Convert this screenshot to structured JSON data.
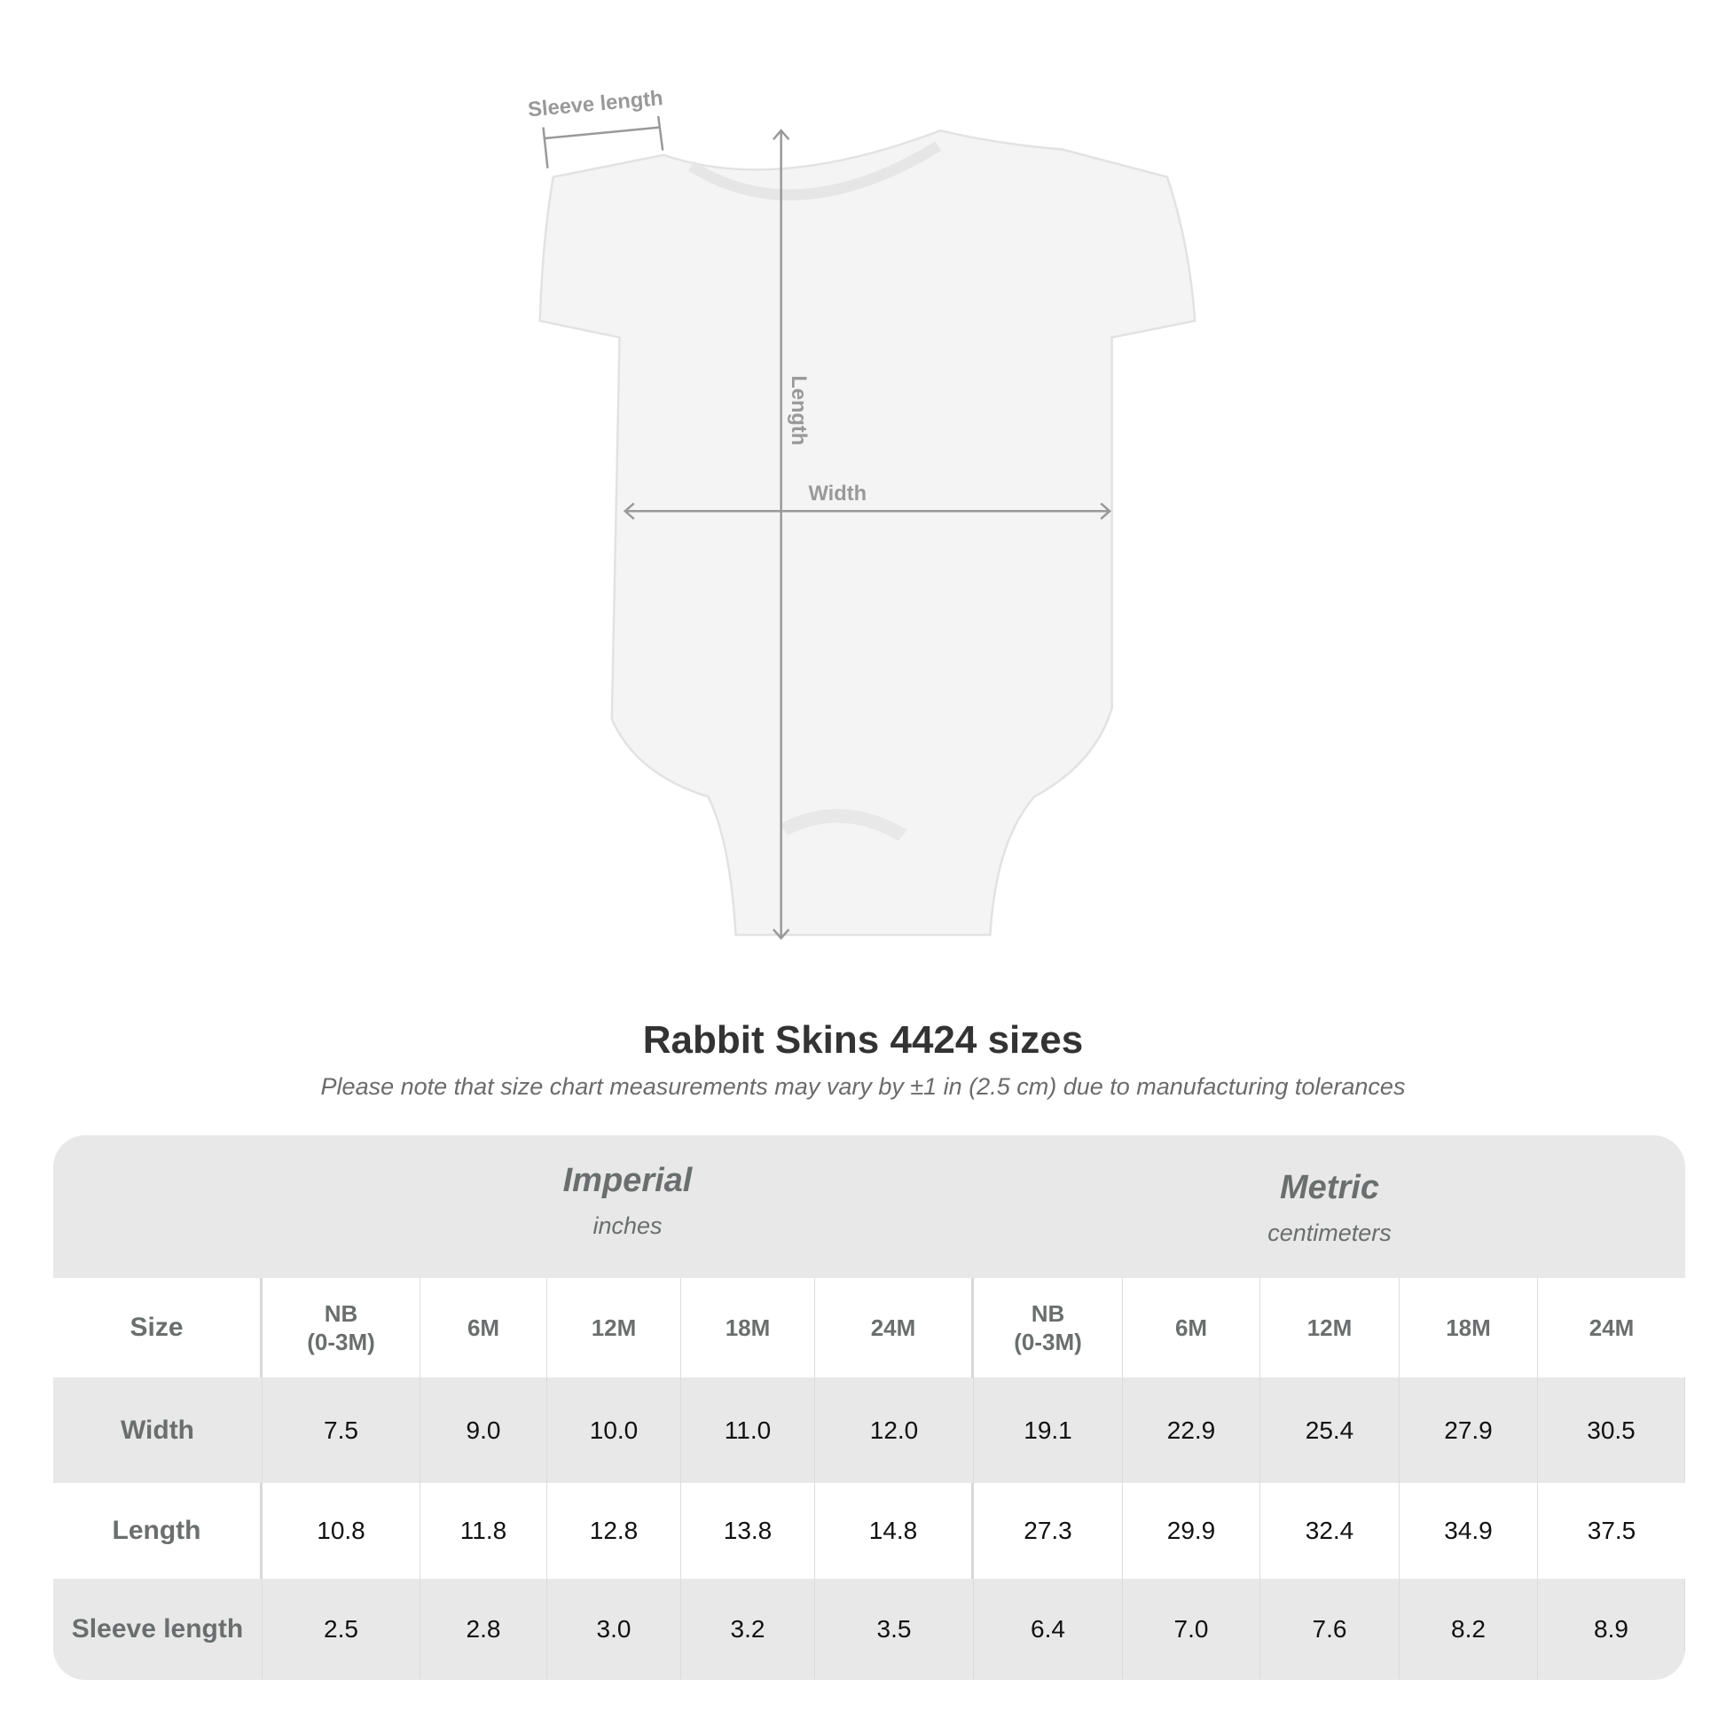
{
  "diagram": {
    "labels": {
      "sleeve": "Sleeve length",
      "length": "Length",
      "width": "Width"
    },
    "colors": {
      "garment": "#f5f5f5",
      "measure": "#999999"
    }
  },
  "title": "Rabbit Skins 4424 sizes",
  "subtitle": "Please note that size chart measurements may vary by ±1 in (2.5 cm) due to manufacturing tolerances",
  "table": {
    "imperial": {
      "label": "Imperial",
      "unit": "inches"
    },
    "metric": {
      "label": "Metric",
      "unit": "centimeters"
    },
    "size_label": "Size",
    "sizes": [
      "NB\n(0-3M)",
      "6M",
      "12M",
      "18M",
      "24M"
    ],
    "rows": [
      {
        "label": "Width",
        "imperial": [
          "7.5",
          "9.0",
          "10.0",
          "11.0",
          "12.0"
        ],
        "metric": [
          "19.1",
          "22.9",
          "25.4",
          "27.9",
          "30.5"
        ]
      },
      {
        "label": "Length",
        "imperial": [
          "10.8",
          "11.8",
          "12.8",
          "13.8",
          "14.8"
        ],
        "metric": [
          "27.3",
          "29.9",
          "32.4",
          "34.9",
          "37.5"
        ]
      },
      {
        "label": "Sleeve length",
        "imperial": [
          "2.5",
          "2.8",
          "3.0",
          "3.2",
          "3.5"
        ],
        "metric": [
          "6.4",
          "7.0",
          "7.6",
          "8.2",
          "8.9"
        ]
      }
    ]
  }
}
